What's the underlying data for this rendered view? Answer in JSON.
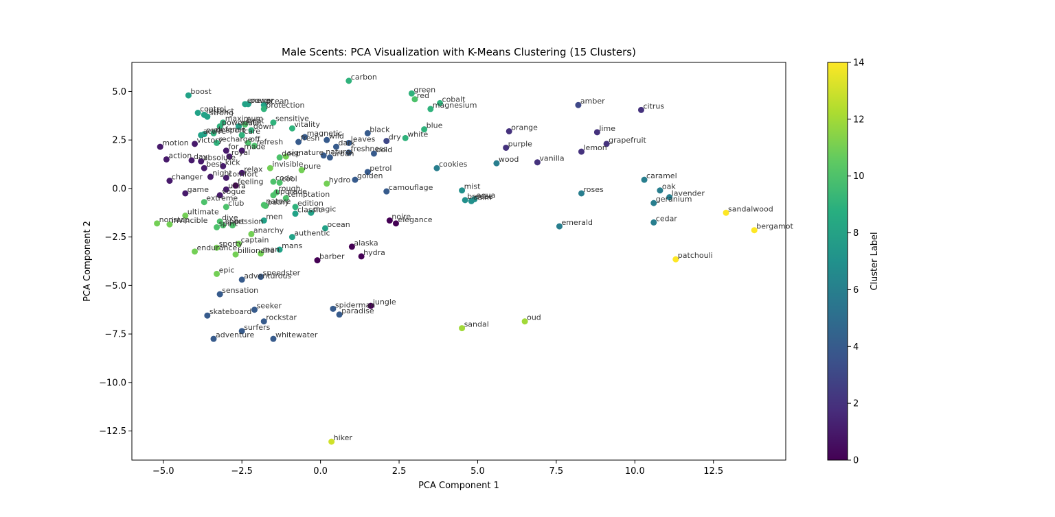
{
  "chart_data": {
    "type": "scatter",
    "title": "Male Scents: PCA Visualization with K-Means Clustering (15 Clusters)",
    "xlabel": "PCA Component 1",
    "ylabel": "PCA Component 2",
    "xlim": [
      -6.0,
      14.8
    ],
    "ylim": [
      -14.0,
      6.5
    ],
    "xticks": [
      -5.0,
      -2.5,
      0.0,
      2.5,
      5.0,
      7.5,
      10.0,
      12.5
    ],
    "xtick_labels": [
      "−5.0",
      "−2.5",
      "0.0",
      "2.5",
      "5.0",
      "7.5",
      "10.0",
      "12.5"
    ],
    "yticks": [
      5.0,
      2.5,
      0.0,
      -2.5,
      -5.0,
      -7.5,
      -10.0,
      -12.5
    ],
    "ytick_labels": [
      "5.0",
      "2.5",
      "0.0",
      "−2.5",
      "−5.0",
      "−7.5",
      "−10.0",
      "−12.5"
    ],
    "grid": false,
    "colormap": "viridis",
    "colorbar": {
      "label": "Cluster Label",
      "range": [
        0,
        14
      ],
      "ticks": [
        0,
        2,
        4,
        6,
        8,
        10,
        12,
        14
      ],
      "tick_labels": [
        "0",
        "2",
        "4",
        "6",
        "8",
        "10",
        "12",
        "14"
      ]
    },
    "points": [
      {
        "label": "boost",
        "x": -4.2,
        "y": 4.8,
        "cluster": 8
      },
      {
        "label": "carbon",
        "x": 0.9,
        "y": 5.55,
        "cluster": 9
      },
      {
        "label": "green",
        "x": 2.9,
        "y": 4.9,
        "cluster": 9
      },
      {
        "label": "red",
        "x": 3.0,
        "y": 4.6,
        "cluster": 10
      },
      {
        "label": "cobalt",
        "x": 3.8,
        "y": 4.4,
        "cluster": 9
      },
      {
        "label": "magnesium",
        "x": 3.5,
        "y": 4.1,
        "cluster": 9
      },
      {
        "label": "energy",
        "x": -2.4,
        "y": 4.35,
        "cluster": 8
      },
      {
        "label": "power",
        "x": -2.3,
        "y": 4.35,
        "cluster": 8
      },
      {
        "label": "ocean",
        "x": -1.8,
        "y": 4.3,
        "cluster": 8
      },
      {
        "label": "protection",
        "x": -1.8,
        "y": 4.1,
        "cluster": 9
      },
      {
        "label": "control",
        "x": -3.9,
        "y": 3.9,
        "cluster": 8
      },
      {
        "label": "instinct",
        "x": -3.7,
        "y": 3.8,
        "cluster": 8
      },
      {
        "label": "strong",
        "x": -3.6,
        "y": 3.7,
        "cluster": 8
      },
      {
        "label": "maximum",
        "x": -3.1,
        "y": 3.4,
        "cluster": 9
      },
      {
        "label": "sensitive",
        "x": -1.5,
        "y": 3.4,
        "cluster": 9
      },
      {
        "label": "powerful",
        "x": -3.2,
        "y": 3.2,
        "cluster": 9
      },
      {
        "label": "result",
        "x": -2.6,
        "y": 3.2,
        "cluster": 8
      },
      {
        "label": "beat",
        "x": -2.4,
        "y": 3.3,
        "cluster": 10
      },
      {
        "label": "down",
        "x": -2.2,
        "y": 3.0,
        "cluster": 9
      },
      {
        "label": "care",
        "x": -2.5,
        "y": 2.75,
        "cluster": 9
      },
      {
        "label": "vitality",
        "x": -0.9,
        "y": 3.1,
        "cluster": 9
      },
      {
        "label": "blue",
        "x": 3.3,
        "y": 3.05,
        "cluster": 9
      },
      {
        "label": "white",
        "x": 2.7,
        "y": 2.6,
        "cluster": 9
      },
      {
        "label": "black",
        "x": 1.5,
        "y": 2.85,
        "cluster": 4
      },
      {
        "label": "dry",
        "x": 2.1,
        "y": 2.45,
        "cluster": 3
      },
      {
        "label": "amber",
        "x": 8.2,
        "y": 4.3,
        "cluster": 3
      },
      {
        "label": "citrus",
        "x": 10.2,
        "y": 4.05,
        "cluster": 2
      },
      {
        "label": "orange",
        "x": 6.0,
        "y": 2.95,
        "cluster": 2
      },
      {
        "label": "lime",
        "x": 8.8,
        "y": 2.9,
        "cluster": 2
      },
      {
        "label": "grapefruit",
        "x": 9.1,
        "y": 2.3,
        "cluster": 2
      },
      {
        "label": "purple",
        "x": 5.9,
        "y": 2.1,
        "cluster": 2
      },
      {
        "label": "lemon",
        "x": 8.3,
        "y": 1.9,
        "cluster": 2
      },
      {
        "label": "vanilla",
        "x": 6.9,
        "y": 1.35,
        "cluster": 2
      },
      {
        "label": "wood",
        "x": 5.6,
        "y": 1.3,
        "cluster": 6
      },
      {
        "label": "cookies",
        "x": 3.7,
        "y": 1.05,
        "cluster": 6
      },
      {
        "label": "caramel",
        "x": 10.3,
        "y": 0.45,
        "cluster": 6
      },
      {
        "label": "oak",
        "x": 10.8,
        "y": -0.1,
        "cluster": 6
      },
      {
        "label": "lavender",
        "x": 11.1,
        "y": -0.45,
        "cluster": 6
      },
      {
        "label": "geranium",
        "x": 10.6,
        "y": -0.75,
        "cluster": 6
      },
      {
        "label": "roses",
        "x": 8.3,
        "y": -0.25,
        "cluster": 6
      },
      {
        "label": "cedar",
        "x": 10.6,
        "y": -1.75,
        "cluster": 6
      },
      {
        "label": "emerald",
        "x": 7.6,
        "y": -1.95,
        "cluster": 6
      },
      {
        "label": "sandalwood",
        "x": 12.9,
        "y": -1.25,
        "cluster": 14
      },
      {
        "label": "bergamot",
        "x": 13.8,
        "y": -2.15,
        "cluster": 14
      },
      {
        "label": "patchouli",
        "x": 11.3,
        "y": -3.65,
        "cluster": 14
      },
      {
        "label": "mist",
        "x": 4.5,
        "y": -0.1,
        "cluster": 7
      },
      {
        "label": "aqua",
        "x": 4.9,
        "y": -0.55,
        "cluster": 7
      },
      {
        "label": "breeze",
        "x": 4.6,
        "y": -0.6,
        "cluster": 7
      },
      {
        "label": "calm",
        "x": 4.8,
        "y": -0.65,
        "cluster": 7
      },
      {
        "label": "camouflage",
        "x": 2.1,
        "y": -0.15,
        "cluster": 4
      },
      {
        "label": "petrol",
        "x": 1.5,
        "y": 0.85,
        "cluster": 4
      },
      {
        "label": "golden",
        "x": 1.1,
        "y": 0.45,
        "cluster": 4
      },
      {
        "label": "hydro",
        "x": 0.2,
        "y": 0.25,
        "cluster": 11
      },
      {
        "label": "pure",
        "x": -0.6,
        "y": 0.95,
        "cluster": 11
      },
      {
        "label": "invisible",
        "x": -1.6,
        "y": 1.05,
        "cluster": 11
      },
      {
        "label": "deep",
        "x": -1.3,
        "y": 1.6,
        "cluster": 10
      },
      {
        "label": "signature",
        "x": -1.1,
        "y": 1.65,
        "cluster": 11
      },
      {
        "label": "natural",
        "x": 0.1,
        "y": 1.7,
        "cluster": 4
      },
      {
        "label": "urban",
        "x": 0.3,
        "y": 1.6,
        "cluster": 4
      },
      {
        "label": "bold",
        "x": 1.7,
        "y": 1.8,
        "cluster": 4
      },
      {
        "label": "freshness",
        "x": 0.9,
        "y": 1.85,
        "cluster": 4
      },
      {
        "label": "leaves",
        "x": 0.9,
        "y": 2.35,
        "cluster": 4
      },
      {
        "label": "dark",
        "x": 0.5,
        "y": 2.15,
        "cluster": 4
      },
      {
        "label": "wild",
        "x": 0.2,
        "y": 2.5,
        "cluster": 4
      },
      {
        "label": "magnetic",
        "x": -0.5,
        "y": 2.65,
        "cluster": 4
      },
      {
        "label": "fresh",
        "x": -0.7,
        "y": 2.4,
        "cluster": 4
      },
      {
        "label": "refresh",
        "x": -2.1,
        "y": 2.2,
        "cluster": 10
      },
      {
        "label": "off",
        "x": -2.3,
        "y": 2.35,
        "cluster": 10
      },
      {
        "label": "made",
        "x": -2.5,
        "y": 1.95,
        "cluster": 1
      },
      {
        "label": "royal",
        "x": -2.9,
        "y": 1.65,
        "cluster": 1
      },
      {
        "label": "active",
        "x": -3.8,
        "y": 2.75,
        "cluster": 8
      },
      {
        "label": "pure sport",
        "x": -3.7,
        "y": 2.8,
        "cluster": 8
      },
      {
        "label": "defense",
        "x": -3.4,
        "y": 2.85,
        "cluster": 9
      },
      {
        "label": "recharge",
        "x": -3.3,
        "y": 2.35,
        "cluster": 9
      },
      {
        "label": "victory",
        "x": -4.0,
        "y": 2.3,
        "cluster": 1
      },
      {
        "label": "motion",
        "x": -5.1,
        "y": 2.15,
        "cluster": 1
      },
      {
        "label": "for",
        "x": -3.0,
        "y": 1.95,
        "cluster": 1
      },
      {
        "label": "action",
        "x": -4.9,
        "y": 1.5,
        "cluster": 1
      },
      {
        "label": "day",
        "x": -4.1,
        "y": 1.45,
        "cluster": 1
      },
      {
        "label": "absolute",
        "x": -3.8,
        "y": 1.4,
        "cluster": 1
      },
      {
        "label": "kick",
        "x": -3.1,
        "y": 1.15,
        "cluster": 1
      },
      {
        "label": "best",
        "x": -3.7,
        "y": 1.05,
        "cluster": 1
      },
      {
        "label": "relax",
        "x": -2.5,
        "y": 0.8,
        "cluster": 1
      },
      {
        "label": "night",
        "x": -3.5,
        "y": 0.6,
        "cluster": 1
      },
      {
        "label": "comfort",
        "x": -3.0,
        "y": 0.55,
        "cluster": 1
      },
      {
        "label": "changer",
        "x": -4.8,
        "y": 0.4,
        "cluster": 1
      },
      {
        "label": "feeling",
        "x": -2.7,
        "y": 0.15,
        "cluster": 0
      },
      {
        "label": "ultra",
        "x": -3.0,
        "y": -0.05,
        "cluster": 1
      },
      {
        "label": "game",
        "x": -4.3,
        "y": -0.25,
        "cluster": 1
      },
      {
        "label": "vogue",
        "x": -3.2,
        "y": -0.35,
        "cluster": 1
      },
      {
        "label": "code",
        "x": -1.5,
        "y": 0.35,
        "cluster": 10
      },
      {
        "label": "cool",
        "x": -1.3,
        "y": 0.3,
        "cluster": 10
      },
      {
        "label": "rough",
        "x": -1.4,
        "y": -0.2,
        "cluster": 10
      },
      {
        "label": "upgrade",
        "x": -1.5,
        "y": -0.35,
        "cluster": 10
      },
      {
        "label": "temptation",
        "x": -1.1,
        "y": -0.5,
        "cluster": 10
      },
      {
        "label": "edition",
        "x": -0.8,
        "y": -0.95,
        "cluster": 9
      },
      {
        "label": "pathy",
        "x": -1.75,
        "y": -0.9,
        "cluster": 10
      },
      {
        "label": "nature",
        "x": -1.8,
        "y": -0.85,
        "cluster": 10
      },
      {
        "label": "extreme",
        "x": -3.7,
        "y": -0.7,
        "cluster": 10
      },
      {
        "label": "club",
        "x": -3.0,
        "y": -0.95,
        "cluster": 10
      },
      {
        "label": "classic",
        "x": -0.8,
        "y": -1.3,
        "cluster": 8
      },
      {
        "label": "magic",
        "x": -0.3,
        "y": -1.25,
        "cluster": 8
      },
      {
        "label": "nonstop",
        "x": -5.2,
        "y": -1.8,
        "cluster": 11
      },
      {
        "label": "ultimate",
        "x": -4.3,
        "y": -1.4,
        "cluster": 11
      },
      {
        "label": "invincible",
        "x": -4.8,
        "y": -1.85,
        "cluster": 11
      },
      {
        "label": "dive",
        "x": -3.2,
        "y": -1.7,
        "cluster": 10
      },
      {
        "label": "sport",
        "x": -3.1,
        "y": -1.9,
        "cluster": 10
      },
      {
        "label": "passion",
        "x": -2.8,
        "y": -1.9,
        "cluster": 10
      },
      {
        "label": "spirit",
        "x": -3.3,
        "y": -2.0,
        "cluster": 10
      },
      {
        "label": "men",
        "x": -1.8,
        "y": -1.65,
        "cluster": 8
      },
      {
        "label": "anarchy",
        "x": -2.2,
        "y": -2.35,
        "cluster": 11
      },
      {
        "label": "authentic",
        "x": -0.9,
        "y": -2.5,
        "cluster": 8
      },
      {
        "label": "ocean",
        "x": 0.15,
        "y": -2.05,
        "cluster": 8
      },
      {
        "label": "captain",
        "x": -2.6,
        "y": -2.85,
        "cluster": 11
      },
      {
        "label": "sporty",
        "x": -3.3,
        "y": -3.05,
        "cluster": 11
      },
      {
        "label": "mans",
        "x": -1.3,
        "y": -3.15,
        "cluster": 8
      },
      {
        "label": "endurance",
        "x": -4.0,
        "y": -3.25,
        "cluster": 11
      },
      {
        "label": "billionaire",
        "x": -2.7,
        "y": -3.4,
        "cluster": 11
      },
      {
        "label": "man",
        "x": -1.9,
        "y": -3.35,
        "cluster": 11
      },
      {
        "label": "noire",
        "x": 2.2,
        "y": -1.65,
        "cluster": 0
      },
      {
        "label": "elegance",
        "x": 2.4,
        "y": -1.8,
        "cluster": 0
      },
      {
        "label": "alaska",
        "x": 1.0,
        "y": -3.0,
        "cluster": 0
      },
      {
        "label": "hydra",
        "x": 1.3,
        "y": -3.5,
        "cluster": 0
      },
      {
        "label": "barber",
        "x": -0.1,
        "y": -3.7,
        "cluster": 0
      },
      {
        "label": "epic",
        "x": -3.3,
        "y": -4.4,
        "cluster": 11
      },
      {
        "label": "speedster",
        "x": -1.9,
        "y": -4.55,
        "cluster": 4
      },
      {
        "label": "adventurous",
        "x": -2.5,
        "y": -4.7,
        "cluster": 4
      },
      {
        "label": "sensation",
        "x": -3.2,
        "y": -5.45,
        "cluster": 4
      },
      {
        "label": "jungle",
        "x": 1.6,
        "y": -6.05,
        "cluster": 0
      },
      {
        "label": "spiderman",
        "x": 0.4,
        "y": -6.2,
        "cluster": 4
      },
      {
        "label": "paradise",
        "x": 0.6,
        "y": -6.5,
        "cluster": 4
      },
      {
        "label": "seeker",
        "x": -2.1,
        "y": -6.25,
        "cluster": 4
      },
      {
        "label": "skateboard",
        "x": -3.6,
        "y": -6.55,
        "cluster": 4
      },
      {
        "label": "rockstar",
        "x": -1.8,
        "y": -6.85,
        "cluster": 4
      },
      {
        "label": "surfers",
        "x": -2.5,
        "y": -7.35,
        "cluster": 4
      },
      {
        "label": "adventure",
        "x": -3.4,
        "y": -7.75,
        "cluster": 4
      },
      {
        "label": "whitewater",
        "x": -1.5,
        "y": -7.75,
        "cluster": 4
      },
      {
        "label": "sandal",
        "x": 4.5,
        "y": -7.2,
        "cluster": 12
      },
      {
        "label": "oud",
        "x": 6.5,
        "y": -6.85,
        "cluster": 12
      },
      {
        "label": "hiker",
        "x": 0.35,
        "y": -13.05,
        "cluster": 13
      }
    ]
  }
}
